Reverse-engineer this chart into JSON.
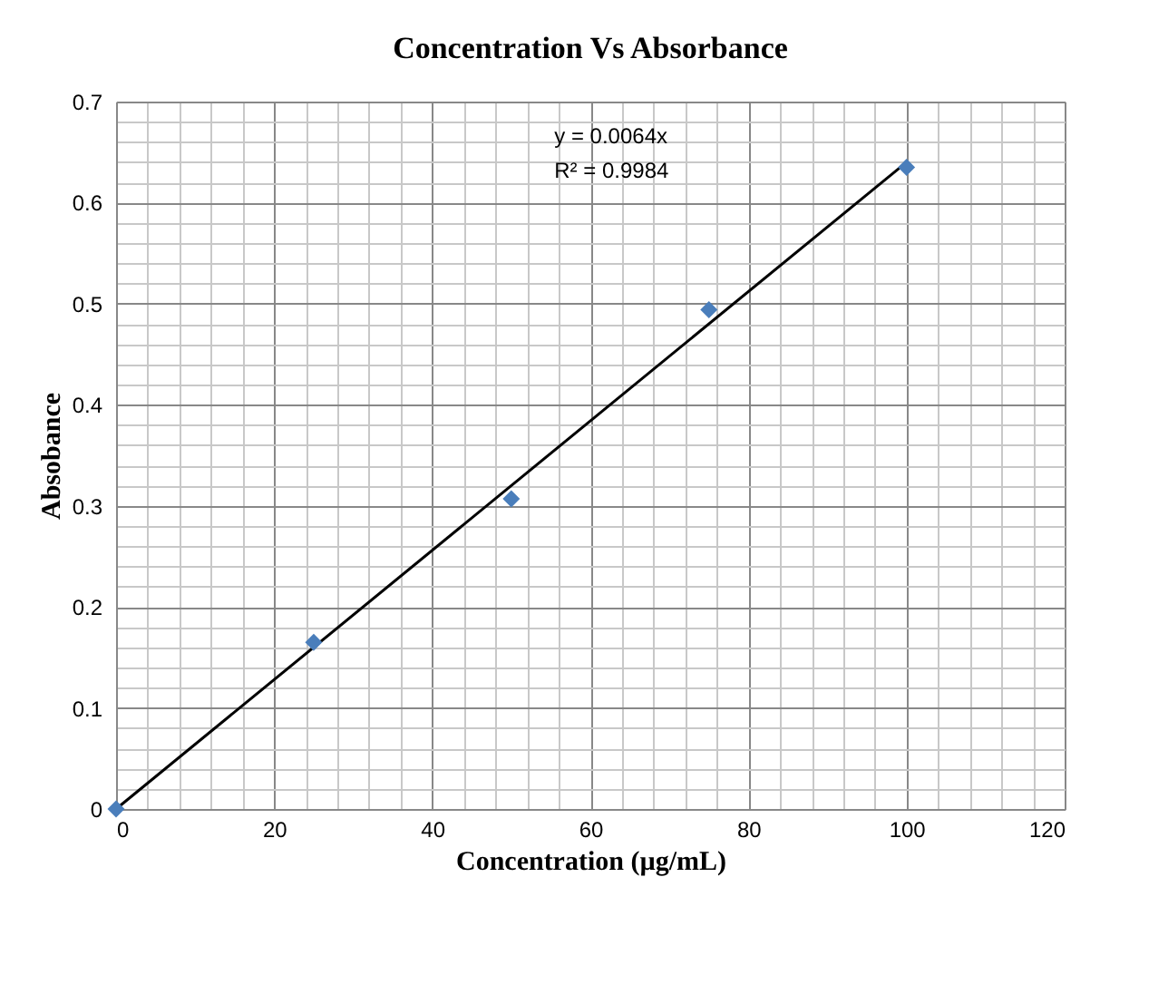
{
  "chart_data": {
    "type": "scatter",
    "title": "Concentration Vs Absorbance",
    "xlabel": "Concentration (µg/mL)",
    "ylabel": "Absobance",
    "series": [
      {
        "color": "#4a7ebb",
        "marker": "diamond",
        "x": [
          0,
          25,
          50,
          75,
          100
        ],
        "values": [
          0,
          0.165,
          0.307,
          0.494,
          0.635
        ]
      },
      {
        "type": "line",
        "color": "#000000",
        "line_style": "solid",
        "x": [
          0,
          100
        ],
        "values": [
          0,
          0.64
        ]
      }
    ],
    "annotations": [
      "y = 0.0064x",
      "R² = 0.9984"
    ],
    "xlim": [
      0,
      120
    ],
    "ylim": [
      0,
      0.7
    ],
    "xticks": [
      0,
      {
        "value": 4,
        "label": null
      },
      {
        "value": 8,
        "label": null
      },
      {
        "value": 12,
        "label": null
      },
      {
        "value": 16,
        "label": null
      },
      20,
      {
        "value": 24,
        "label": null
      },
      {
        "value": 28,
        "label": null
      },
      {
        "value": 32,
        "label": null
      },
      {
        "value": 36,
        "label": null
      },
      40,
      {
        "value": 44,
        "label": null
      },
      {
        "value": 48,
        "label": null
      },
      {
        "value": 52,
        "label": null
      },
      {
        "value": 56,
        "label": null
      },
      60,
      {
        "value": 64,
        "label": null
      },
      {
        "value": 68,
        "label": null
      },
      {
        "value": 72,
        "label": null
      },
      {
        "value": 76,
        "label": null
      },
      80,
      {
        "value": 84,
        "label": null
      },
      {
        "value": 88,
        "label": null
      },
      {
        "value": 92,
        "label": null
      },
      {
        "value": 96,
        "label": null
      },
      100,
      {
        "value": 104,
        "label": null
      },
      {
        "value": 108,
        "label": null
      },
      {
        "value": 112,
        "label": null
      },
      {
        "value": 116,
        "label": null
      },
      120
    ],
    "yticks": [
      0,
      {
        "value": 0.02,
        "label": null
      },
      {
        "value": 0.04,
        "label": null
      },
      {
        "value": 0.06,
        "label": null
      },
      {
        "value": 0.08,
        "label": null
      },
      0.1,
      {
        "value": 0.12,
        "label": null
      },
      {
        "value": 0.14,
        "label": null
      },
      {
        "value": 0.16,
        "label": null
      },
      {
        "value": 0.18,
        "label": null
      },
      0.2,
      {
        "value": 0.22,
        "label": null
      },
      {
        "value": 0.24,
        "label": null
      },
      {
        "value": 0.26,
        "label": null
      },
      {
        "value": 0.28,
        "label": null
      },
      0.3,
      {
        "value": 0.32,
        "label": null
      },
      {
        "value": 0.34,
        "label": null
      },
      {
        "value": 0.36,
        "label": null
      },
      {
        "value": 0.38,
        "label": null
      },
      0.4,
      {
        "value": 0.42,
        "label": null
      },
      {
        "value": 0.44,
        "label": null
      },
      {
        "value": 0.46,
        "label": null
      },
      {
        "value": 0.48,
        "label": null
      },
      0.5,
      {
        "value": 0.52,
        "label": null
      },
      {
        "value": 0.54,
        "label": null
      },
      {
        "value": 0.56,
        "label": null
      },
      {
        "value": 0.58,
        "label": null
      },
      0.6,
      {
        "value": 0.62,
        "label": null
      },
      {
        "value": 0.64,
        "label": null
      },
      {
        "value": 0.66,
        "label": null
      },
      {
        "value": 0.68,
        "label": null
      },
      0.7
    ],
    "grid": true
  }
}
